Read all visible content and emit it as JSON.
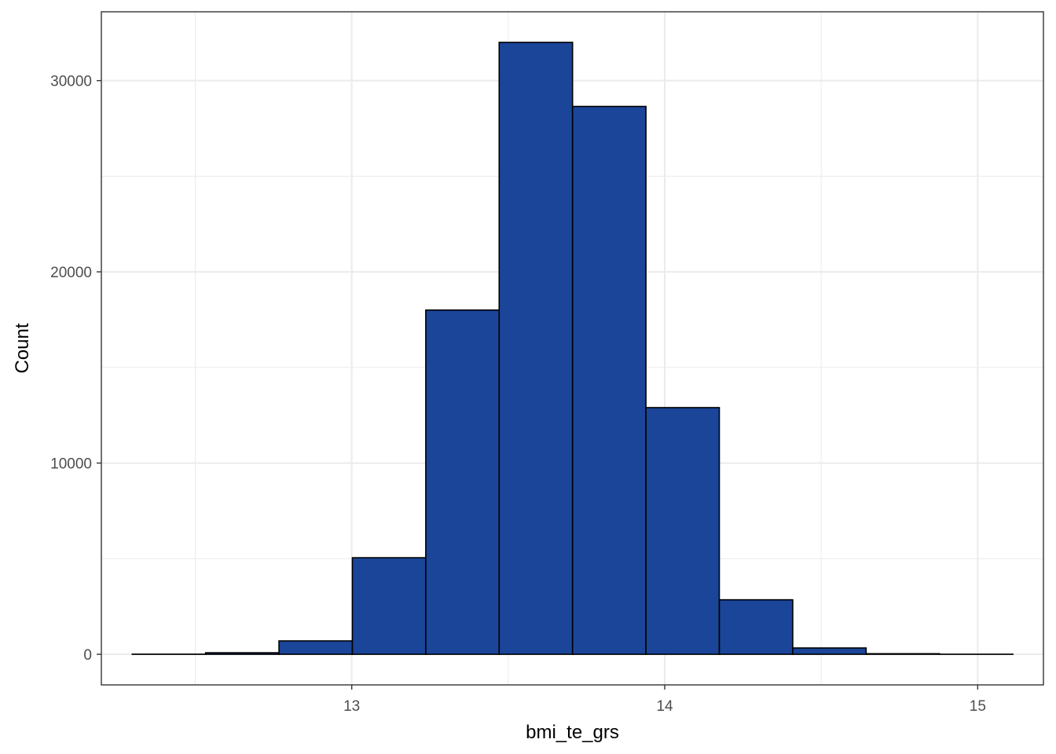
{
  "chart_data": {
    "type": "bar",
    "subtype": "histogram",
    "title": "",
    "xlabel": "bmi_te_grs",
    "ylabel": "Count",
    "bin_width": 0.2345,
    "bins": [
      {
        "x_start": 12.2985,
        "x_end": 12.533,
        "count": 5
      },
      {
        "x_start": 12.533,
        "x_end": 12.7675,
        "count": 80
      },
      {
        "x_start": 12.7675,
        "x_end": 13.002,
        "count": 700
      },
      {
        "x_start": 13.002,
        "x_end": 13.2365,
        "count": 5050
      },
      {
        "x_start": 13.2365,
        "x_end": 13.471,
        "count": 18000
      },
      {
        "x_start": 13.471,
        "x_end": 13.7055,
        "count": 32000
      },
      {
        "x_start": 13.7055,
        "x_end": 13.94,
        "count": 28650
      },
      {
        "x_start": 13.94,
        "x_end": 14.1745,
        "count": 12900
      },
      {
        "x_start": 14.1745,
        "x_end": 14.409,
        "count": 2850
      },
      {
        "x_start": 14.409,
        "x_end": 14.6435,
        "count": 330
      },
      {
        "x_start": 14.6435,
        "x_end": 14.878,
        "count": 30
      },
      {
        "x_start": 14.878,
        "x_end": 15.1125,
        "count": 3
      }
    ],
    "xlim": [
      12.2,
      15.21
    ],
    "ylim": [
      -1600,
      33600
    ],
    "x_ticks": [
      13,
      14,
      15
    ],
    "x_tick_labels": [
      "13",
      "14",
      "15"
    ],
    "x_minor_ticks": [
      12.5,
      13.5,
      14.5
    ],
    "y_ticks": [
      0,
      10000,
      20000,
      30000
    ],
    "y_tick_labels": [
      "0",
      "10000",
      "20000",
      "30000"
    ],
    "y_minor_ticks": [
      5000,
      15000,
      25000
    ],
    "grid": true,
    "legend": "none",
    "colors": {
      "bar_fill": "#1A4599",
      "bar_stroke": "#000000",
      "grid": "#ebebeb",
      "panel_border": "#333333",
      "tick_text": "#4d4d4d",
      "axis_title": "#000000"
    }
  }
}
